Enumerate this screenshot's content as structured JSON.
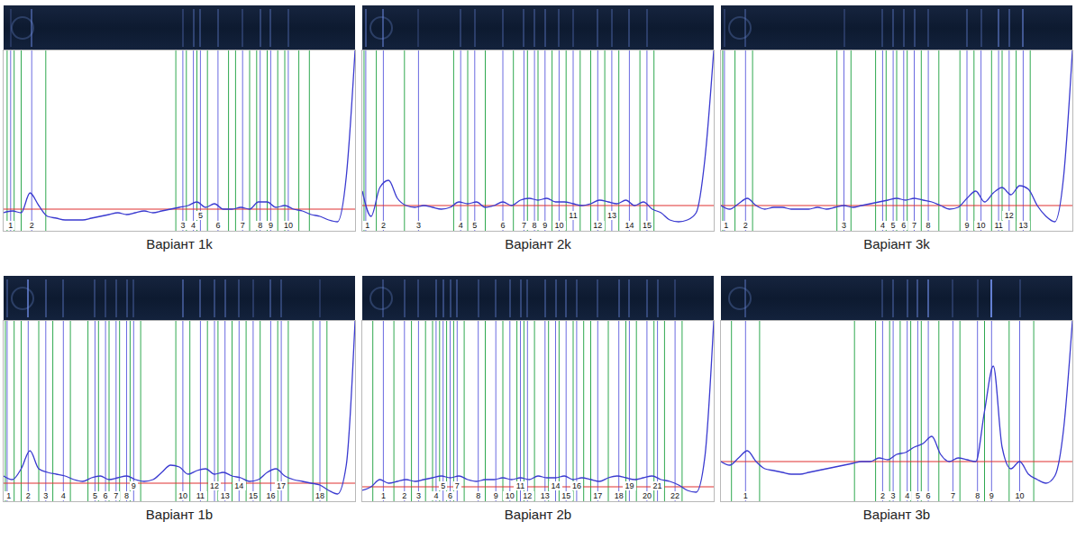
{
  "chart_data": [
    {
      "type": "line",
      "title": "Варіант 1k",
      "color": "#3a3ad0",
      "xlim": [
        0,
        100
      ],
      "ylim": [
        0,
        100
      ],
      "tick_labels": false,
      "baseline": 12,
      "x": [
        0,
        2.5,
        5,
        7.5,
        10,
        12.5,
        15,
        17.5,
        20,
        22.5,
        25,
        27.5,
        30,
        32.5,
        35,
        37.5,
        40,
        42.5,
        45,
        47.5,
        50,
        52.5,
        55,
        57.5,
        60,
        62.5,
        65,
        67.5,
        70,
        72.5,
        75,
        77.5,
        80,
        82.5,
        85,
        87.5,
        90,
        92.5,
        95,
        97.5,
        100
      ],
      "values": [
        10,
        11,
        10,
        21,
        14,
        8,
        7,
        6,
        6,
        6,
        7,
        8,
        9,
        10,
        9,
        10,
        11,
        10,
        11,
        12,
        13,
        14,
        16,
        13,
        15,
        12,
        12,
        13,
        12,
        16,
        16,
        13,
        14,
        12,
        11,
        9,
        8,
        6,
        5,
        30,
        100
      ],
      "boundaries": [
        1,
        3,
        5,
        12,
        49,
        52,
        55,
        58,
        64,
        66,
        70,
        72,
        75,
        78,
        80,
        84,
        87
      ],
      "peak_x": [
        2,
        8,
        51,
        54,
        56,
        61,
        68,
        73,
        76,
        81
      ],
      "peak_labels": [
        1,
        2,
        3,
        4,
        5,
        6,
        7,
        8,
        9,
        10
      ]
    },
    {
      "type": "line",
      "title": "Варіант 2k",
      "color": "#3a3ad0",
      "xlim": [
        0,
        100
      ],
      "ylim": [
        0,
        100
      ],
      "tick_labels": false,
      "baseline": 14,
      "x": [
        0,
        2.5,
        5,
        7.5,
        10,
        12.5,
        15,
        17.5,
        20,
        22.5,
        25,
        27.5,
        30,
        32.5,
        35,
        37.5,
        40,
        42.5,
        45,
        47.5,
        50,
        52.5,
        55,
        57.5,
        60,
        62.5,
        65,
        67.5,
        70,
        72.5,
        75,
        77.5,
        80,
        82.5,
        85,
        87.5,
        90,
        92.5,
        95,
        97.5,
        100
      ],
      "values": [
        22,
        8,
        24,
        28,
        18,
        14,
        13,
        14,
        13,
        12,
        13,
        16,
        15,
        16,
        13,
        14,
        16,
        14,
        17,
        18,
        17,
        18,
        16,
        16,
        15,
        14,
        15,
        17,
        16,
        15,
        17,
        14,
        16,
        12,
        10,
        6,
        5,
        6,
        10,
        40,
        100
      ],
      "boundaries": [
        0.5,
        4,
        12,
        26,
        30,
        35,
        43,
        47,
        50,
        54,
        58,
        62,
        65,
        69,
        73,
        79,
        83
      ],
      "peak_x": [
        1,
        6,
        16,
        28,
        32,
        40,
        46,
        49,
        52,
        56,
        60,
        67,
        71,
        76,
        81
      ],
      "peak_labels": [
        1,
        2,
        3,
        4,
        5,
        6,
        7,
        8,
        9,
        10,
        11,
        12,
        13,
        14,
        15
      ]
    },
    {
      "type": "line",
      "title": "Варіант 3k",
      "color": "#3a3ad0",
      "xlim": [
        0,
        100
      ],
      "ylim": [
        0,
        100
      ],
      "tick_labels": false,
      "baseline": 14,
      "x": [
        0,
        2.5,
        5,
        7.5,
        10,
        12.5,
        15,
        17.5,
        20,
        22.5,
        25,
        27.5,
        30,
        32.5,
        35,
        37.5,
        40,
        42.5,
        45,
        47.5,
        50,
        52.5,
        55,
        57.5,
        60,
        62.5,
        65,
        67.5,
        70,
        72.5,
        75,
        77.5,
        80,
        82.5,
        85,
        87.5,
        90,
        92.5,
        95,
        97.5,
        100
      ],
      "values": [
        14,
        12,
        15,
        18,
        14,
        12,
        13,
        13,
        12,
        12,
        12,
        13,
        12,
        13,
        14,
        13,
        14,
        15,
        16,
        17,
        18,
        17,
        18,
        17,
        16,
        14,
        12,
        13,
        18,
        22,
        16,
        21,
        24,
        20,
        25,
        23,
        14,
        8,
        5,
        30,
        100
      ],
      "boundaries": [
        0.5,
        4,
        9,
        33,
        37,
        44,
        47,
        50,
        53,
        57,
        62,
        68,
        72,
        77,
        80,
        84,
        88
      ],
      "peak_x": [
        1,
        7,
        35,
        46,
        49,
        52,
        55,
        59,
        70,
        74,
        79,
        82,
        86
      ],
      "peak_labels": [
        1,
        2,
        3,
        4,
        5,
        6,
        7,
        8,
        9,
        10,
        11,
        12,
        13
      ]
    },
    {
      "type": "line",
      "title": "Варіант 1b",
      "color": "#3a3ad0",
      "xlim": [
        0,
        100
      ],
      "ylim": [
        0,
        100
      ],
      "tick_labels": false,
      "baseline": 10,
      "x": [
        0,
        2.5,
        5,
        7.5,
        10,
        12.5,
        15,
        17.5,
        20,
        22.5,
        25,
        27.5,
        30,
        32.5,
        35,
        37.5,
        40,
        42.5,
        45,
        47.5,
        50,
        52.5,
        55,
        57.5,
        60,
        62.5,
        65,
        67.5,
        70,
        72.5,
        75,
        77.5,
        80,
        82.5,
        85,
        87.5,
        90,
        92.5,
        95,
        97.5,
        100
      ],
      "values": [
        14,
        12,
        18,
        28,
        18,
        16,
        15,
        14,
        12,
        11,
        13,
        14,
        12,
        13,
        14,
        12,
        11,
        12,
        16,
        20,
        19,
        15,
        17,
        18,
        15,
        16,
        14,
        13,
        11,
        12,
        16,
        18,
        14,
        12,
        11,
        10,
        9,
        6,
        4,
        20,
        100
      ],
      "boundaries": [
        0.5,
        3,
        5,
        10,
        14,
        19,
        24,
        27,
        30,
        33,
        36,
        39,
        49,
        53,
        58,
        61,
        65,
        69,
        73,
        78,
        81,
        88,
        92
      ],
      "peak_x": [
        1,
        7,
        12,
        17,
        26,
        29,
        32,
        35,
        37,
        51,
        56,
        60,
        63,
        67,
        71,
        76,
        79,
        90
      ],
      "peak_labels": [
        1,
        2,
        3,
        4,
        5,
        6,
        7,
        8,
        9,
        10,
        11,
        12,
        13,
        14,
        15,
        16,
        17,
        18
      ]
    },
    {
      "type": "line",
      "title": "Варіант 2b",
      "color": "#3a3ad0",
      "xlim": [
        0,
        100
      ],
      "ylim": [
        0,
        100
      ],
      "tick_labels": false,
      "baseline": 8,
      "x": [
        0,
        2.5,
        5,
        7.5,
        10,
        12.5,
        15,
        17.5,
        20,
        22.5,
        25,
        27.5,
        30,
        32.5,
        35,
        37.5,
        40,
        42.5,
        45,
        47.5,
        50,
        52.5,
        55,
        57.5,
        60,
        62.5,
        65,
        67.5,
        70,
        72.5,
        75,
        77.5,
        80,
        82.5,
        85,
        87.5,
        90,
        92.5,
        95,
        97.5,
        100
      ],
      "values": [
        6,
        8,
        12,
        10,
        11,
        12,
        11,
        12,
        13,
        14,
        13,
        14,
        12,
        11,
        12,
        12,
        13,
        12,
        13,
        12,
        14,
        13,
        13,
        14,
        12,
        13,
        12,
        11,
        13,
        14,
        13,
        12,
        13,
        14,
        12,
        11,
        9,
        6,
        5,
        25,
        100
      ],
      "boundaries": [
        3,
        9,
        14,
        18,
        20,
        22,
        24,
        26,
        29,
        35,
        40,
        44,
        46,
        49,
        53,
        56,
        60,
        63,
        65,
        70,
        75,
        78,
        83,
        86,
        91
      ],
      "peak_x": [
        6,
        12,
        16,
        21,
        23,
        25,
        27,
        33,
        38,
        42,
        45,
        47,
        52,
        55,
        58,
        61,
        67,
        73,
        76,
        81,
        84,
        89
      ],
      "peak_labels": [
        1,
        2,
        3,
        4,
        5,
        6,
        7,
        8,
        9,
        10,
        11,
        12,
        13,
        14,
        15,
        16,
        17,
        18,
        19,
        20,
        21,
        22
      ]
    },
    {
      "type": "line",
      "title": "Варіант 3b",
      "color": "#3a3ad0",
      "xlim": [
        0,
        100
      ],
      "ylim": [
        0,
        100
      ],
      "tick_labels": false,
      "baseline": 22,
      "x": [
        0,
        2.5,
        5,
        7.5,
        10,
        12.5,
        15,
        17.5,
        20,
        22.5,
        25,
        27.5,
        30,
        32.5,
        35,
        37.5,
        40,
        42.5,
        45,
        47.5,
        50,
        52.5,
        55,
        57.5,
        60,
        62.5,
        65,
        67.5,
        70,
        72.5,
        75,
        77.5,
        80,
        82.5,
        85,
        87.5,
        90,
        92.5,
        95,
        97.5,
        100
      ],
      "values": [
        22,
        20,
        24,
        28,
        22,
        18,
        17,
        16,
        15,
        15,
        16,
        17,
        18,
        19,
        20,
        21,
        22,
        22,
        24,
        23,
        26,
        27,
        30,
        32,
        36,
        26,
        22,
        24,
        23,
        22,
        50,
        75,
        30,
        18,
        22,
        15,
        12,
        10,
        14,
        40,
        100
      ],
      "boundaries": [
        3,
        11,
        38,
        44,
        48,
        51,
        54,
        57,
        62,
        68,
        75,
        82,
        89
      ],
      "peak_x": [
        7,
        46,
        49,
        53,
        56,
        59,
        66,
        73,
        77,
        85
      ],
      "peak_labels": [
        1,
        2,
        3,
        4,
        5,
        6,
        7,
        8,
        9,
        10
      ]
    }
  ]
}
